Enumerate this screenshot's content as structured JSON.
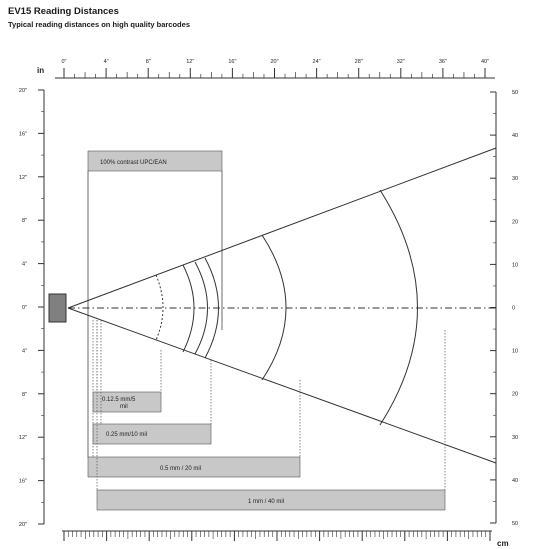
{
  "header": {
    "title": "EV15 Reading Distances",
    "subtitle": "Typical reading distances on high quality barcodes"
  },
  "axes": {
    "inch_unit": "in",
    "cm_unit": "cm",
    "top_ticks": [
      "0\"",
      "4\"",
      "8\"",
      "12\"",
      "16\"",
      "20\"",
      "24\"",
      "28\"",
      "32\"",
      "36\"",
      "40\""
    ],
    "left_ticks": [
      "20\"",
      "16\"",
      "12\"",
      "8\"",
      "4\"",
      "0\"",
      "4\"",
      "8\"",
      "12\"",
      "16\"",
      "20\""
    ],
    "right_ticks": [
      "50",
      "40",
      "30",
      "20",
      "10",
      "0",
      "10",
      "20",
      "30",
      "40",
      "50"
    ]
  },
  "labels": {
    "contrast": "100% contrast UPC/EAN",
    "res1_line1": "0.12.5 mm/5",
    "res1_line2": "mil",
    "res2": "0.25 mm/10 mil",
    "res3": "0.5 mm / 20 mil",
    "res4": "1 mm / 40 mil"
  },
  "colors": {
    "box_fill": "#c8c8c8",
    "line": "#333333",
    "scanner": "#808080"
  }
}
